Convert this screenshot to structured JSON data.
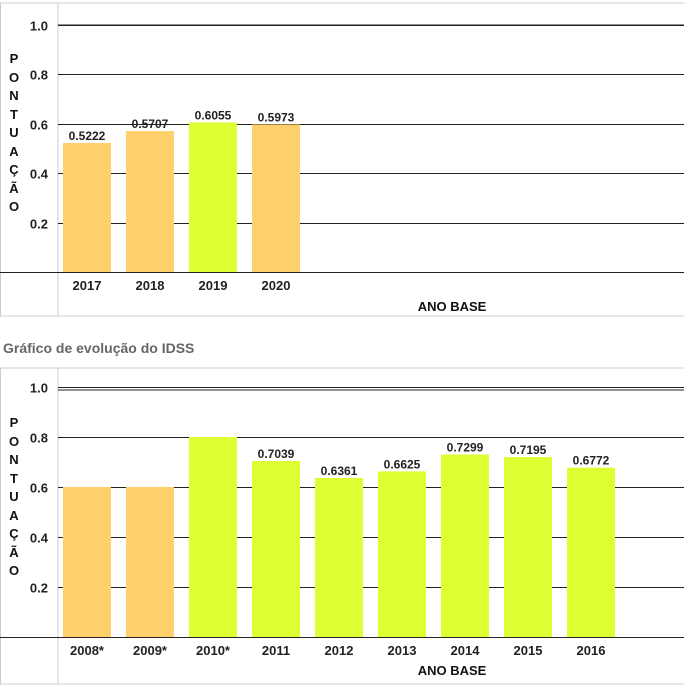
{
  "chart_data": [
    {
      "type": "bar",
      "ylabel": "PONTUAÇÃO",
      "xlabel": "ANO BASE",
      "ylim": [
        0,
        1.0
      ],
      "yticks": [
        "0.2",
        "0.4",
        "0.6",
        "0.8",
        "1.0"
      ],
      "grid": true,
      "categories": [
        "2017",
        "2018",
        "2019",
        "2020"
      ],
      "values": [
        0.5222,
        0.5707,
        0.6055,
        0.5973
      ],
      "value_labels": [
        "0.5222",
        "0.5707",
        "0.6055",
        "0.5973"
      ],
      "bar_colors": [
        "#fdd06b",
        "#fdd06b",
        "#dcff33",
        "#fdd06b"
      ]
    },
    {
      "type": "bar",
      "title": "Gráfico de evolução do IDSS",
      "ylabel": "PONTUAÇÃO",
      "xlabel": "ANO BASE",
      "ylim": [
        0,
        1.0
      ],
      "yticks": [
        "0.2",
        "0.4",
        "0.6",
        "0.8",
        "1.0"
      ],
      "grid": true,
      "categories": [
        "2008*",
        "2009*",
        "2010*",
        "2011",
        "2012",
        "2013",
        "2014",
        "2015",
        "2016"
      ],
      "values": [
        0.6,
        0.6,
        0.8,
        0.7039,
        0.6361,
        0.6625,
        0.7299,
        0.7195,
        0.6772
      ],
      "value_labels": [
        "",
        "",
        "",
        "0.7039",
        "0.6361",
        "0.6625",
        "0.7299",
        "0.7195",
        "0.6772"
      ],
      "bar_colors": [
        "#fdd06b",
        "#fdd06b",
        "#dcff33",
        "#dcff33",
        "#dcff33",
        "#dcff33",
        "#dcff33",
        "#dcff33",
        "#dcff33"
      ]
    }
  ],
  "colors": {
    "grid": "#222222",
    "border": "#cccccc",
    "low": "#fdd06b",
    "high": "#dcff33"
  }
}
